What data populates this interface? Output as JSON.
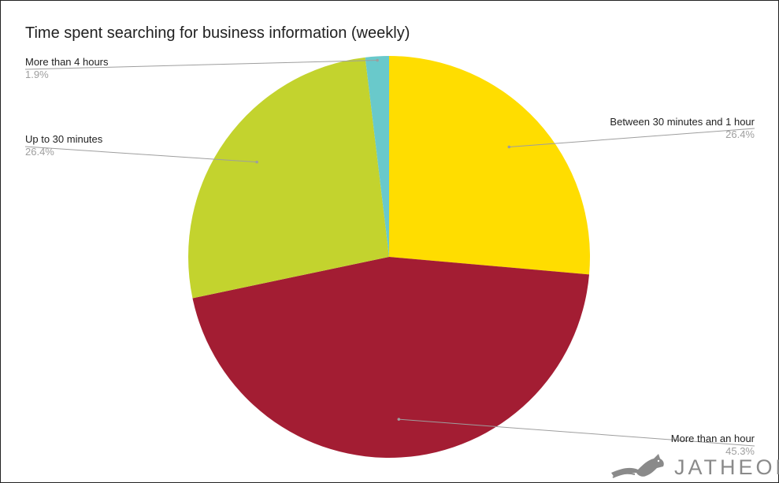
{
  "chart_data": {
    "type": "pie",
    "title": "Time spent searching for business information (weekly)",
    "slices": [
      {
        "label": "Between 30 minutes and 1 hour",
        "value": 26.4,
        "value_label": "26.4%",
        "color": "#FFDD00"
      },
      {
        "label": "More than an hour",
        "value": 45.3,
        "value_label": "45.3%",
        "color": "#A31D33"
      },
      {
        "label": "Up to 30 minutes",
        "value": 26.4,
        "value_label": "26.4%",
        "color": "#C3D32E"
      },
      {
        "label": "More than 4 hours",
        "value": 1.9,
        "value_label": "1.9%",
        "color": "#69C9CB"
      }
    ],
    "start_angle": "12 o'clock",
    "direction": "clockwise",
    "legend": "none (callout labels)"
  },
  "branding": {
    "logo_text": "JATHEON",
    "logo_color": "#8A8A8A"
  }
}
